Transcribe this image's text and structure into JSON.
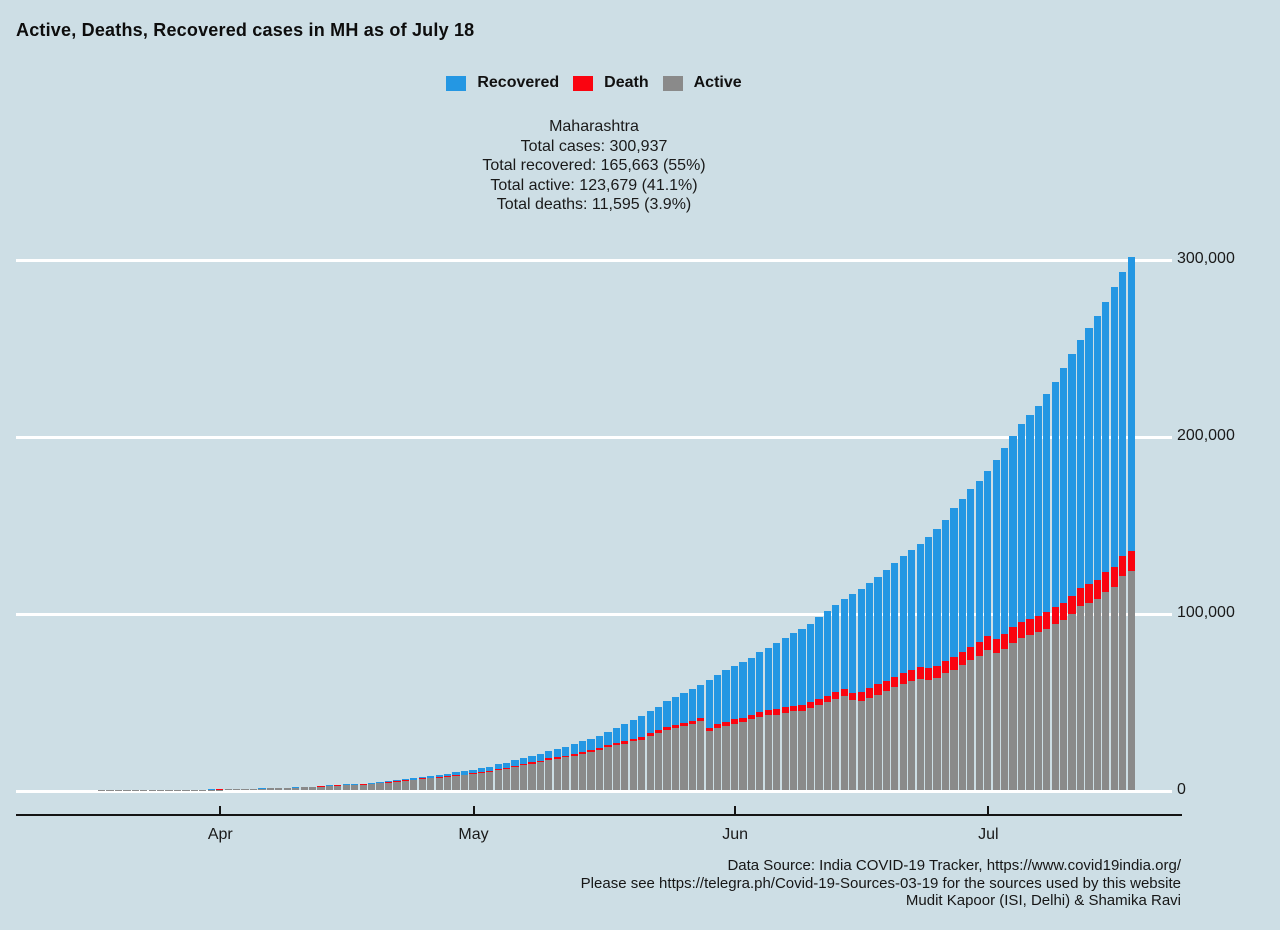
{
  "title": "Active, Deaths, Recovered cases in MH as of July 18",
  "legend": [
    {
      "label": "Recovered",
      "color": "#2497e3"
    },
    {
      "label": "Death",
      "color": "#fa0410"
    },
    {
      "label": "Active",
      "color": "#8a8a8a"
    }
  ],
  "stats": {
    "lines": [
      "Maharashtra",
      "Total cases: 300,937",
      "Total recovered: 165,663 (55%)",
      "Total active: 123,679 (41.1%)",
      "Total deaths: 11,595 (3.9%)"
    ]
  },
  "footer": {
    "lines": [
      "Data Source: India COVID-19 Tracker, https://www.covid19india.org/",
      "Please see https://telegra.ph/Covid-19-Sources-03-19 for the sources used by this website",
      "Mudit Kapoor (ISI, Delhi) & Shamika Ravi"
    ]
  },
  "chart_data": {
    "type": "bar",
    "stacked": true,
    "title": "Active, Deaths, Recovered cases in MH as of July 18",
    "xlabel": "",
    "ylabel": "",
    "ylim": [
      0,
      300000
    ],
    "grid": true,
    "legend_position": "top-center",
    "yticks": [
      {
        "value": 0,
        "label": "0"
      },
      {
        "value": 100000,
        "label": "100,000"
      },
      {
        "value": 200000,
        "label": "200,000"
      },
      {
        "value": 300000,
        "label": "300,000"
      }
    ],
    "xticks": [
      {
        "label": "Apr",
        "index": 23
      },
      {
        "label": "May",
        "index": 53
      },
      {
        "label": "Jun",
        "index": 84
      },
      {
        "label": "Jul",
        "index": 114
      }
    ],
    "dates": [
      "Mar 9",
      "Mar 10",
      "Mar 11",
      "Mar 12",
      "Mar 13",
      "Mar 14",
      "Mar 15",
      "Mar 16",
      "Mar 17",
      "Mar 18",
      "Mar 19",
      "Mar 20",
      "Mar 21",
      "Mar 22",
      "Mar 23",
      "Mar 24",
      "Mar 25",
      "Mar 26",
      "Mar 27",
      "Mar 28",
      "Mar 29",
      "Mar 30",
      "Mar 31",
      "Apr 1",
      "Apr 2",
      "Apr 3",
      "Apr 4",
      "Apr 5",
      "Apr 6",
      "Apr 7",
      "Apr 8",
      "Apr 9",
      "Apr 10",
      "Apr 11",
      "Apr 12",
      "Apr 13",
      "Apr 14",
      "Apr 15",
      "Apr 16",
      "Apr 17",
      "Apr 18",
      "Apr 19",
      "Apr 20",
      "Apr 21",
      "Apr 22",
      "Apr 23",
      "Apr 24",
      "Apr 25",
      "Apr 26",
      "Apr 27",
      "Apr 28",
      "Apr 29",
      "Apr 30",
      "May 1",
      "May 2",
      "May 3",
      "May 4",
      "May 5",
      "May 6",
      "May 7",
      "May 8",
      "May 9",
      "May 10",
      "May 11",
      "May 12",
      "May 13",
      "May 14",
      "May 15",
      "May 16",
      "May 17",
      "May 18",
      "May 19",
      "May 20",
      "May 21",
      "May 22",
      "May 23",
      "May 24",
      "May 25",
      "May 26",
      "May 27",
      "May 28",
      "May 29",
      "May 30",
      "May 31",
      "Jun 1",
      "Jun 2",
      "Jun 3",
      "Jun 4",
      "Jun 5",
      "Jun 6",
      "Jun 7",
      "Jun 8",
      "Jun 9",
      "Jun 10",
      "Jun 11",
      "Jun 12",
      "Jun 13",
      "Jun 14",
      "Jun 15",
      "Jun 16",
      "Jun 17",
      "Jun 18",
      "Jun 19",
      "Jun 20",
      "Jun 21",
      "Jun 22",
      "Jun 23",
      "Jun 24",
      "Jun 25",
      "Jun 26",
      "Jun 27",
      "Jun 28",
      "Jun 29",
      "Jun 30",
      "Jul 1",
      "Jul 2",
      "Jul 3",
      "Jul 4",
      "Jul 5",
      "Jul 6",
      "Jul 7",
      "Jul 8",
      "Jul 9",
      "Jul 10",
      "Jul 11",
      "Jul 12",
      "Jul 13",
      "Jul 14",
      "Jul 15",
      "Jul 16",
      "Jul 17",
      "Jul 18"
    ],
    "series": [
      {
        "name": "Active",
        "color": "#8a8a8a",
        "values": [
          2,
          5,
          11,
          14,
          17,
          31,
          32,
          39,
          40,
          44,
          47,
          51,
          63,
          71,
          93,
          103,
          123,
          116,
          137,
          155,
          160,
          172,
          254,
          280,
          362,
          424,
          551,
          647,
          764,
          875,
          946,
          1142,
          1276,
          1426,
          1616,
          1945,
          2247,
          2434,
          2708,
          2788,
          3072,
          3470,
          3862,
          4245,
          4591,
          5304,
          5559,
          6229,
          6538,
          6939,
          7530,
          7890,
          8266,
          9142,
          9775,
          10311,
          11493,
          12089,
          13013,
          13979,
          14862,
          15649,
          17140,
          17747,
          18381,
          19400,
          20446,
          21468,
          22483,
          24167,
          25372,
          26172,
          27589,
          28462,
          30482,
          32209,
          33996,
          35186,
          36012,
          37133,
          38948,
          33133,
          34890,
          36040,
          37543,
          38502,
          39944,
          41402,
          42224,
          42609,
          43601,
          44384,
          44860,
          46086,
          47980,
          49628,
          51392,
          53030,
          50965,
          50057,
          51935,
          53915,
          55665,
          58068,
          60161,
          61807,
          62848,
          62369,
          63357,
          65844,
          67615,
          70622,
          73313,
          75995,
          79091,
          77276,
          79927,
          83311,
          86057,
          87699,
          89313,
          91084,
          93673,
          95943,
          99499,
          103813,
          105935,
          107963,
          112099,
          114947,
          120780,
          123679
        ]
      },
      {
        "name": "Death",
        "color": "#fa0410",
        "values": [
          0,
          0,
          0,
          0,
          0,
          0,
          0,
          0,
          1,
          1,
          1,
          1,
          1,
          2,
          3,
          3,
          4,
          4,
          5,
          6,
          8,
          9,
          9,
          13,
          19,
          24,
          32,
          45,
          48,
          64,
          72,
          97,
          110,
          127,
          149,
          160,
          178,
          187,
          194,
          201,
          211,
          223,
          232,
          251,
          269,
          283,
          301,
          323,
          342,
          369,
          400,
          432,
          459,
          485,
          521,
          548,
          583,
          617,
          651,
          694,
          731,
          779,
          832,
          868,
          921,
          975,
          1019,
          1068,
          1135,
          1198,
          1249,
          1325,
          1390,
          1454,
          1517,
          1577,
          1635,
          1695,
          1792,
          1897,
          1982,
          2098,
          2197,
          2286,
          2362,
          2465,
          2587,
          2710,
          2849,
          2969,
          3060,
          3169,
          3289,
          3438,
          3590,
          3717,
          3830,
          3950,
          4128,
          5537,
          5651,
          5751,
          5893,
          5984,
          6170,
          6283,
          6531,
          6739,
          6931,
          7106,
          7273,
          7429,
          7610,
          7855,
          8053,
          8178,
          8376,
          8671,
          8822,
          9026,
          9250,
          9448,
          9667,
          9893,
          10116,
          10289,
          10482,
          10695,
          10928,
          11194,
          11452,
          11595
        ]
      },
      {
        "name": "Recovered",
        "color": "#2497e3",
        "values": [
          0,
          0,
          0,
          0,
          0,
          0,
          0,
          0,
          0,
          0,
          0,
          0,
          0,
          1,
          1,
          1,
          1,
          15,
          20,
          25,
          35,
          39,
          39,
          42,
          42,
          42,
          52,
          56,
          56,
          79,
          117,
          125,
          188,
          208,
          217,
          229,
          259,
          295,
          300,
          331,
          365,
          507,
          572,
          722,
          789,
          840,
          957,
          1076,
          1188,
          1282,
          1388,
          1593,
          1773,
          1879,
          2000,
          2115,
          2465,
          2819,
          3094,
          3301,
          3470,
          3800,
          4199,
          4786,
          5125,
          5547,
          6059,
          6564,
          7088,
          7688,
          8437,
          9639,
          10318,
          11726,
          12583,
          13404,
          14600,
          15786,
          16954,
          17918,
          18616,
          26997,
          28081,
          29329,
          30108,
          31333,
          32329,
          33681,
          35156,
          37390,
          39314,
          40975,
          42638,
          44517,
          46078,
          47796,
          49346,
          50978,
          55651,
          57851,
          59166,
          60838,
          62773,
          64153,
          65744,
          67706,
          69631,
          73792,
          77453,
          79815,
          84245,
          86575,
          88960,
          90911,
          93154,
          101172,
          104687,
          108082,
          111740,
          115262,
          118558,
          123192,
          127259,
          132625,
          136985,
          140325,
          144507,
          149007,
          152613,
          158140,
          160357,
          165663
        ]
      }
    ]
  }
}
